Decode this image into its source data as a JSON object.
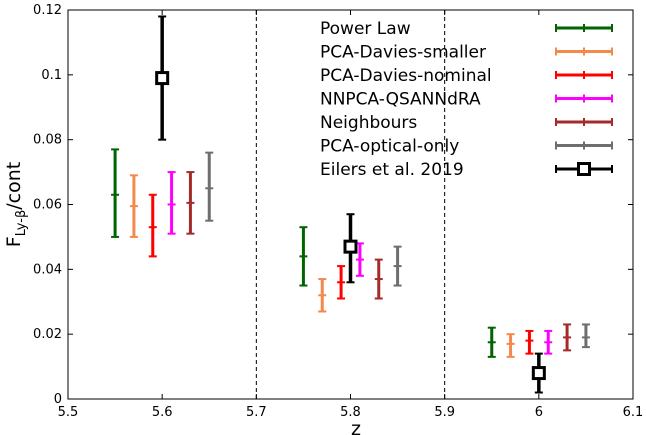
{
  "chart_data": {
    "type": "scatter",
    "xlabel": "z",
    "ylabel": {
      "main": "F",
      "sub": "Ly-β",
      "rest": "/cont"
    },
    "xlim": [
      5.5,
      6.1
    ],
    "ylim": [
      0,
      0.12
    ],
    "xticks": [
      "5.5",
      "5.6",
      "5.7",
      "5.8",
      "5.9",
      "6",
      "6.1"
    ],
    "yticks": [
      "0",
      "0.02",
      "0.04",
      "0.06",
      "0.08",
      "0.1",
      "0.12"
    ],
    "vlines": [
      5.7,
      5.9
    ],
    "grid": false,
    "legend_position": "top-right",
    "series": [
      {
        "name": "Power Law",
        "color": "#006400",
        "marker": "plus",
        "points": [
          {
            "x": 5.55,
            "y": 0.063,
            "lo": 0.05,
            "hi": 0.077
          },
          {
            "x": 5.75,
            "y": 0.044,
            "lo": 0.035,
            "hi": 0.053
          },
          {
            "x": 5.95,
            "y": 0.0175,
            "lo": 0.013,
            "hi": 0.022
          }
        ]
      },
      {
        "name": "PCA-Davies-smaller",
        "color": "#f4894b",
        "marker": "plus",
        "points": [
          {
            "x": 5.57,
            "y": 0.0595,
            "lo": 0.05,
            "hi": 0.069
          },
          {
            "x": 5.77,
            "y": 0.032,
            "lo": 0.027,
            "hi": 0.037
          },
          {
            "x": 5.97,
            "y": 0.017,
            "lo": 0.013,
            "hi": 0.02
          }
        ]
      },
      {
        "name": "PCA-Davies-nominal",
        "color": "#ff0000",
        "marker": "plus",
        "points": [
          {
            "x": 5.59,
            "y": 0.053,
            "lo": 0.044,
            "hi": 0.063
          },
          {
            "x": 5.79,
            "y": 0.036,
            "lo": 0.031,
            "hi": 0.041
          },
          {
            "x": 5.99,
            "y": 0.018,
            "lo": 0.014,
            "hi": 0.021
          }
        ]
      },
      {
        "name": "NNPCA-QSANNdRA",
        "color": "#ff00ff",
        "marker": "plus",
        "points": [
          {
            "x": 5.61,
            "y": 0.06,
            "lo": 0.051,
            "hi": 0.07
          },
          {
            "x": 5.81,
            "y": 0.043,
            "lo": 0.038,
            "hi": 0.048
          },
          {
            "x": 6.01,
            "y": 0.0175,
            "lo": 0.014,
            "hi": 0.021
          }
        ]
      },
      {
        "name": "Neighbours",
        "color": "#a52a2a",
        "marker": "plus",
        "points": [
          {
            "x": 5.63,
            "y": 0.0605,
            "lo": 0.051,
            "hi": 0.07
          },
          {
            "x": 5.83,
            "y": 0.037,
            "lo": 0.031,
            "hi": 0.043
          },
          {
            "x": 6.03,
            "y": 0.019,
            "lo": 0.015,
            "hi": 0.023
          }
        ]
      },
      {
        "name": "PCA-optical-only",
        "color": "#6e6e6e",
        "marker": "plus",
        "points": [
          {
            "x": 5.65,
            "y": 0.065,
            "lo": 0.055,
            "hi": 0.076
          },
          {
            "x": 5.85,
            "y": 0.041,
            "lo": 0.035,
            "hi": 0.047
          },
          {
            "x": 6.05,
            "y": 0.019,
            "lo": 0.016,
            "hi": 0.023
          }
        ]
      },
      {
        "name": "Eilers et al. 2019",
        "color": "#000000",
        "marker": "square",
        "points": [
          {
            "x": 5.6,
            "y": 0.099,
            "lo": 0.08,
            "hi": 0.118
          },
          {
            "x": 5.8,
            "y": 0.047,
            "lo": 0.036,
            "hi": 0.057
          },
          {
            "x": 6.0,
            "y": 0.008,
            "lo": 0.002,
            "hi": 0.014
          }
        ]
      }
    ]
  }
}
